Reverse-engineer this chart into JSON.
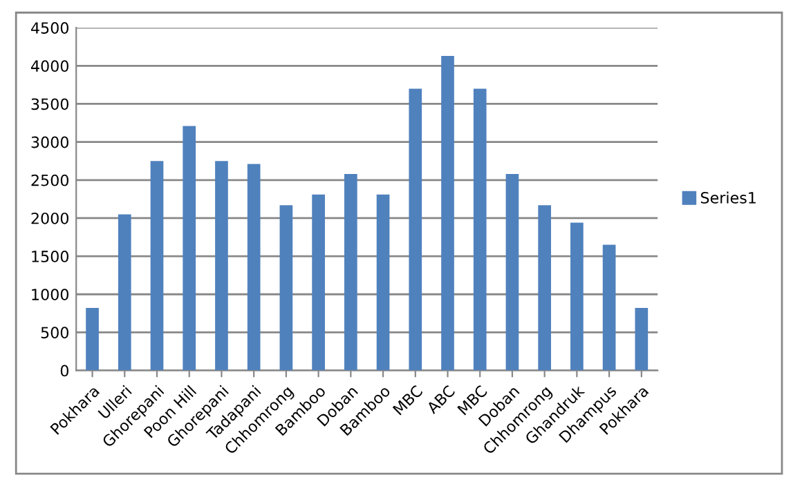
{
  "chart_data": {
    "type": "bar",
    "categories": [
      "Pokhara",
      "Ulleri",
      "Ghorepani",
      "Poon Hill",
      "Ghorepani",
      "Tadapani",
      "Chhomrong",
      "Bamboo",
      "Doban",
      "Bamboo",
      "MBC",
      "ABC",
      "MBC",
      "Doban",
      "Chhomrong",
      "Ghandruk",
      "Dhampus",
      "Pokhara"
    ],
    "series": [
      {
        "name": "Series1",
        "color": "#4f81bd",
        "values": [
          820,
          2050,
          2750,
          3210,
          2750,
          2710,
          2170,
          2310,
          2580,
          2310,
          3700,
          4130,
          3700,
          2580,
          2170,
          1940,
          1650,
          820
        ]
      }
    ],
    "ylim": [
      0,
      4500
    ],
    "yticks": [
      0,
      500,
      1000,
      1500,
      2000,
      2500,
      3000,
      3500,
      4000,
      4500
    ],
    "grid": "y",
    "legend": "right"
  }
}
